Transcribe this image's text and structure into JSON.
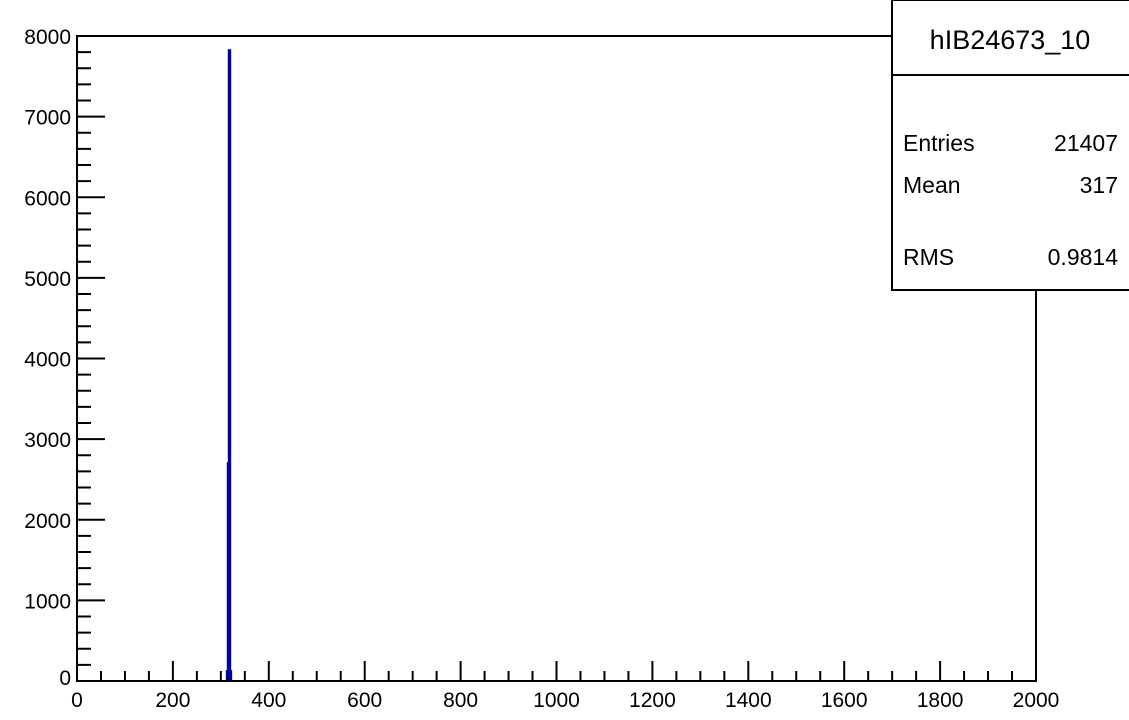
{
  "chart_data": {
    "type": "bar",
    "title": "",
    "xlabel": "",
    "ylabel": "",
    "xlim": [
      0,
      2000
    ],
    "ylim": [
      0,
      8000
    ],
    "x_ticks": [
      "0",
      "200",
      "400",
      "600",
      "800",
      "1000",
      "1200",
      "1400",
      "1600",
      "1800",
      "2000"
    ],
    "y_ticks": [
      "0",
      "1000",
      "2000",
      "3000",
      "4000",
      "5000",
      "6000",
      "7000",
      "8000"
    ],
    "bins": [
      {
        "x": 314,
        "value": 120
      },
      {
        "x": 316,
        "value": 2700
      },
      {
        "x": 318,
        "value": 7820
      },
      {
        "x": 320,
        "value": 120
      }
    ],
    "line_color": "#0000a0",
    "grid": false,
    "legend": "none"
  },
  "stats_box": {
    "title": "hIB24673_10",
    "rows": [
      {
        "label": "Entries",
        "value": "21407"
      },
      {
        "label": "Mean",
        "value": "317"
      },
      {
        "label": "RMS",
        "value": "0.9814"
      }
    ]
  }
}
